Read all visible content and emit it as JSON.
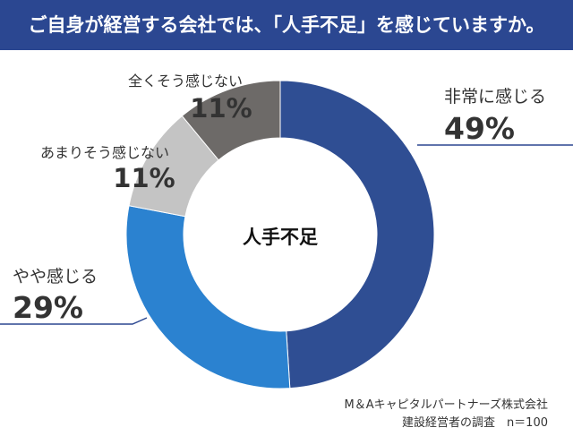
{
  "title": "ご自身が経営する会社では、「人手不足」を感じていますか。",
  "colors": {
    "title_bg": "#2b4791",
    "title_text": "#ffffff",
    "leader_line": "#2b4791",
    "hole": "#ffffff"
  },
  "chart_data": {
    "type": "pie",
    "donut": true,
    "center_label": "人手不足",
    "start": "12 o'clock",
    "direction": "clockwise",
    "slices": [
      {
        "label": "非常に感じる",
        "value": 49,
        "display": "49%",
        "color": "#2f4e93"
      },
      {
        "label": "やや感じる",
        "value": 29,
        "display": "29%",
        "color": "#2b82d0"
      },
      {
        "label": "あまりそう感じない",
        "value": 11,
        "display": "11%",
        "color": "#c4c4c4"
      },
      {
        "label": "全くそう感じない",
        "value": 11,
        "display": "11%",
        "color": "#6d6a68"
      }
    ]
  },
  "source": {
    "line1": "M＆Aキャピタルパートナーズ株式会社",
    "line2": "建設経営者の調査　n＝100"
  }
}
